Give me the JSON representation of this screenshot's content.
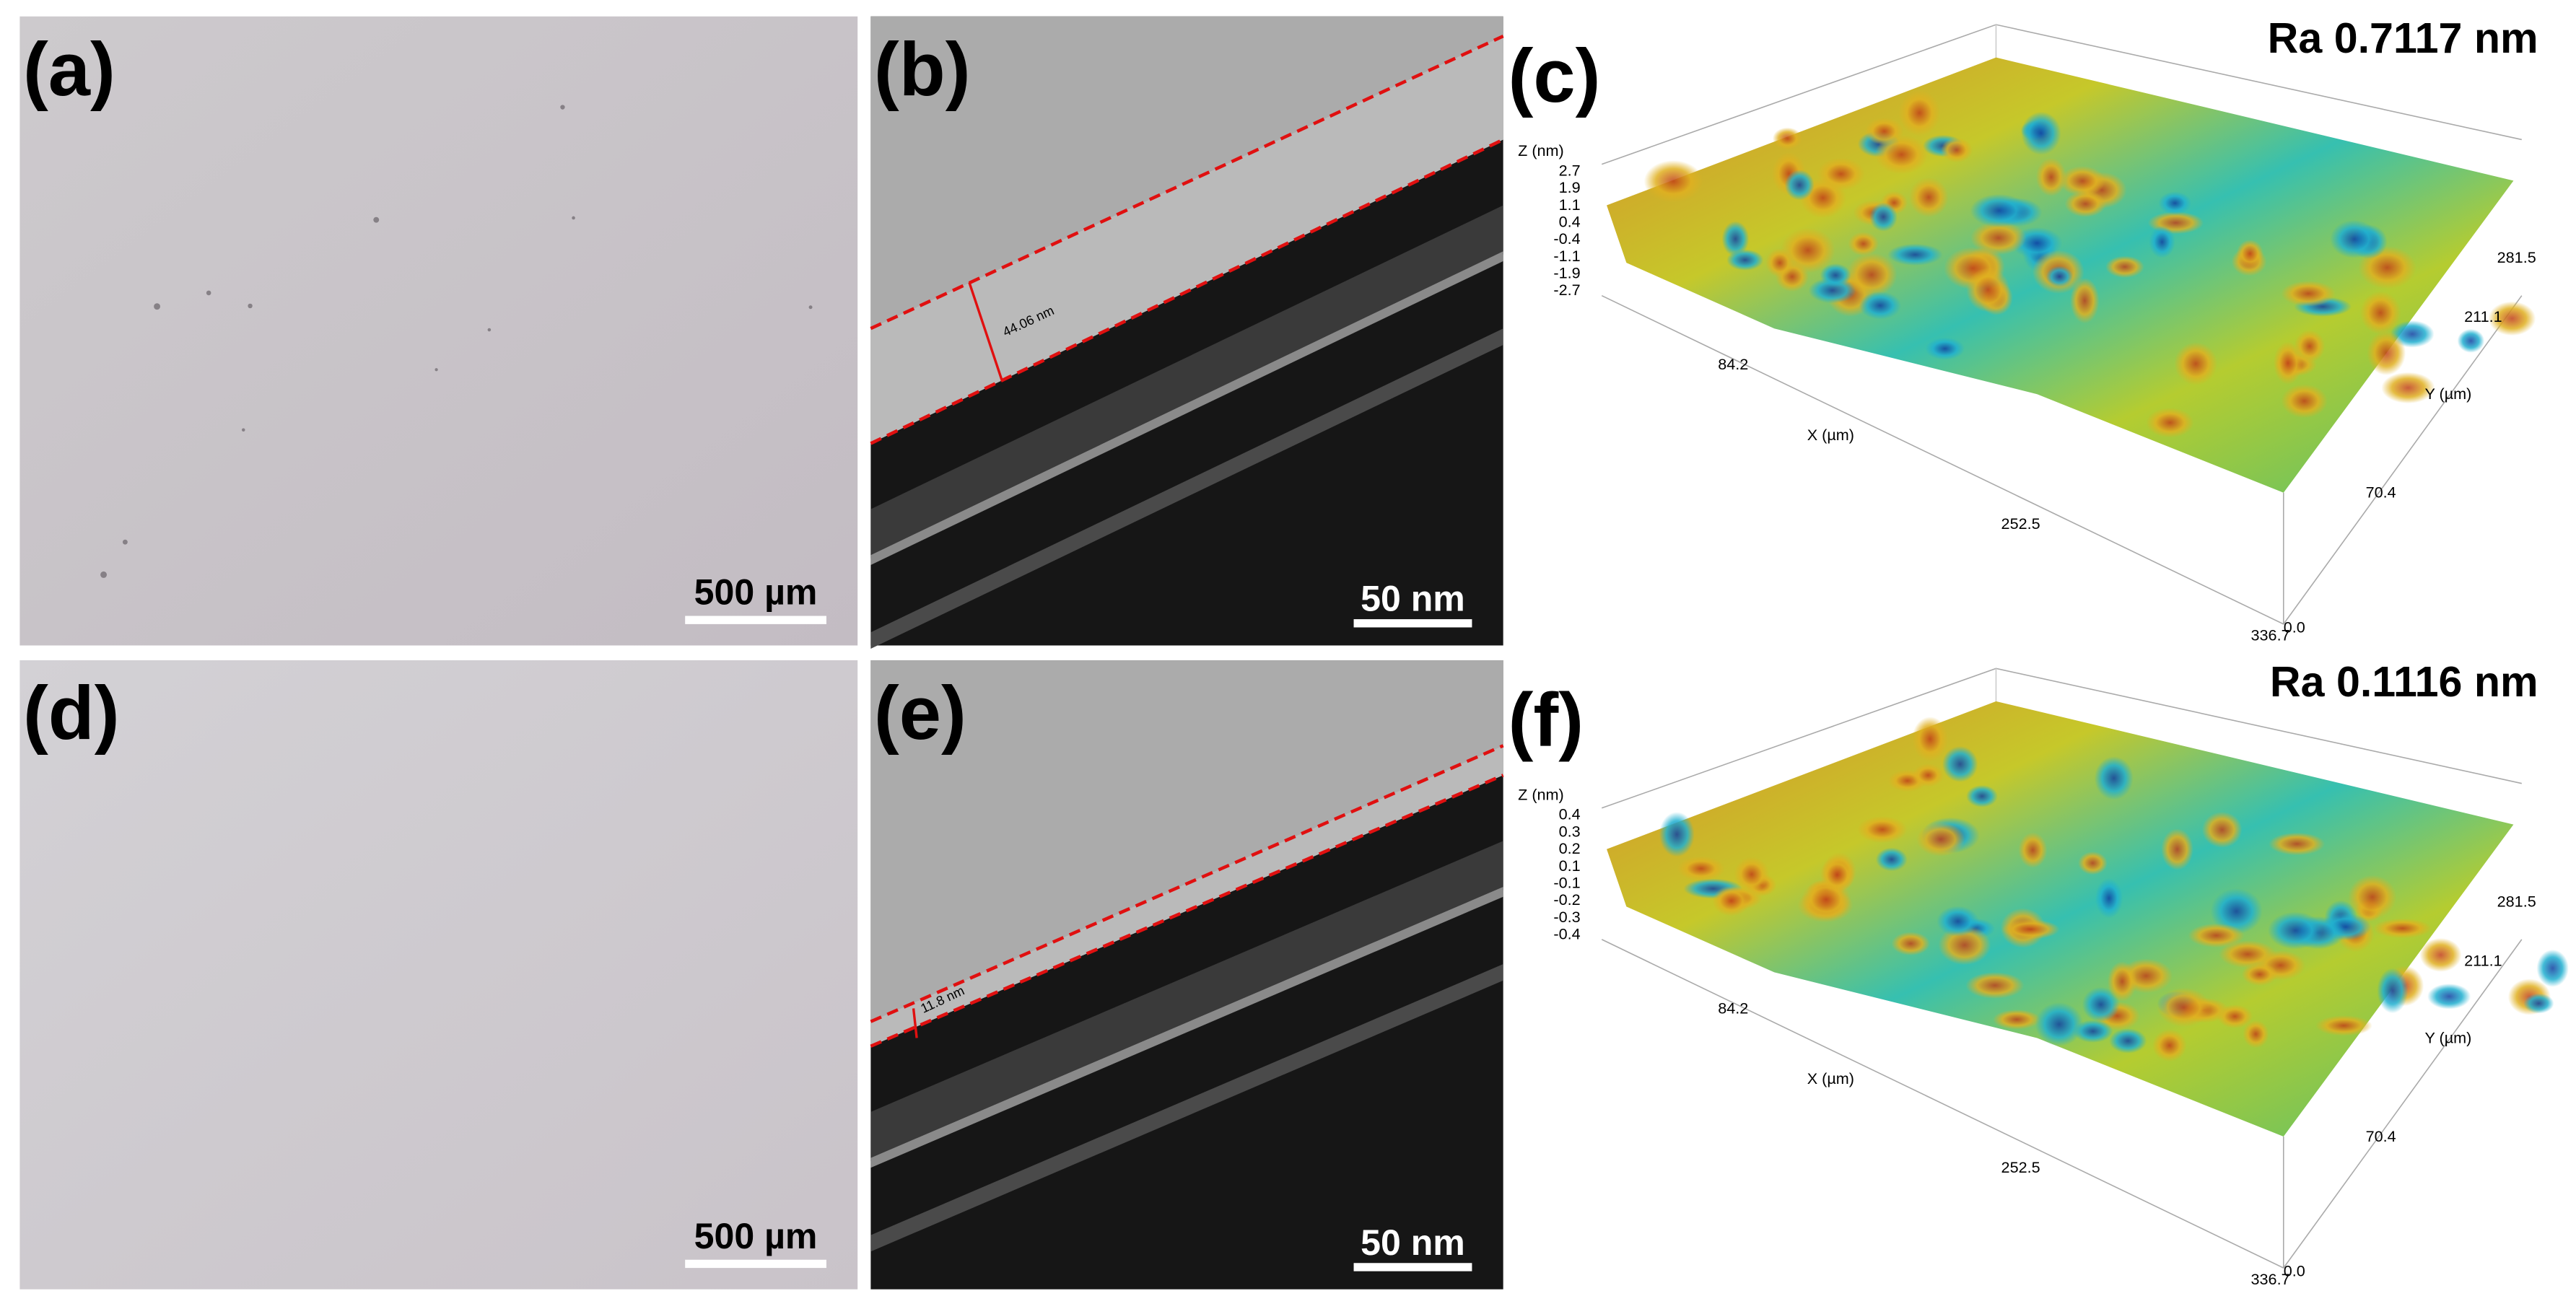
{
  "panels": [
    {
      "label": "(a)",
      "scale_bar": "500 µm"
    },
    {
      "label": "(b)",
      "scale_bar": "50 nm",
      "measurement": "44.06 nm"
    },
    {
      "label": "(c)",
      "ra": "Ra 0.7117 nm",
      "z_axis": "Z (nm)",
      "z_ticks": [
        "2.7",
        "1.9",
        "1.1",
        "0.4",
        "-0.4",
        "-1.1",
        "-1.9",
        "-2.7"
      ],
      "x_axis": "X (µm)",
      "x_ticks": [
        "84.2",
        "252.5",
        "336.7"
      ],
      "y_axis": "Y (µm)",
      "y_ticks": [
        "0.0",
        "70.4",
        "211.1",
        "281.5"
      ]
    },
    {
      "label": "(d)",
      "scale_bar": "500 µm"
    },
    {
      "label": "(e)",
      "scale_bar": "50 nm",
      "measurement": "11.8 nm"
    },
    {
      "label": "(f)",
      "ra": "Ra 0.1116 nm",
      "z_axis": "Z (nm)",
      "z_ticks": [
        "0.4",
        "0.3",
        "0.2",
        "0.1",
        "-0.1",
        "-0.2",
        "-0.3",
        "-0.4"
      ],
      "x_axis": "X (µm)",
      "x_ticks": [
        "84.2",
        "252.5",
        "336.7"
      ],
      "y_axis": "Y (µm)",
      "y_ticks": [
        "0.0",
        "70.4",
        "211.1",
        "281.5"
      ]
    }
  ]
}
